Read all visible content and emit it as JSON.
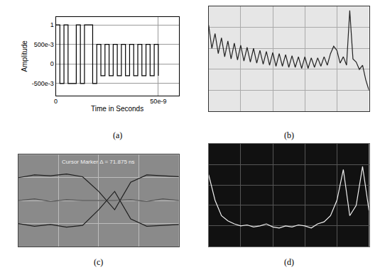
{
  "chart_data": [
    {
      "type": "line",
      "title": "(a)",
      "x_label": "Time in Seconds",
      "y_label": "Amplitude",
      "line_style": "step",
      "color": "#000000",
      "grid": true,
      "x": [
        0,
        2e-09,
        4e-09,
        6e-09,
        8e-09,
        1e-08,
        1.2e-08,
        1.4e-08,
        1.6e-08,
        1.8e-08,
        2e-08,
        2.2e-08,
        2.4e-08,
        2.6e-08,
        2.8e-08,
        3e-08,
        3.2e-08,
        3.4e-08,
        3.6e-08,
        3.8e-08,
        4e-08,
        4.2e-08,
        4.4e-08,
        4.6e-08,
        4.8e-08,
        5e-08
      ],
      "values": [
        1,
        -0.5,
        1,
        -0.5,
        -0.5,
        1,
        -0.5,
        1,
        1,
        -0.5,
        0.5,
        -0.3,
        0.5,
        -0.3,
        0.5,
        -0.3,
        0.5,
        -0.3,
        0.5,
        -0.3,
        0.5,
        -0.3,
        0.5,
        -0.3,
        0.5,
        -0.3
      ],
      "xlim": [
        0,
        6e-08
      ],
      "xticks": [
        0,
        {
          "value": 5e-08,
          "label": "50e-9"
        }
      ],
      "ylim": [
        -0.8,
        1.2
      ],
      "yticks": [
        {
          "value": -0.5,
          "label": "-500e-3"
        },
        0,
        {
          "value": 0.5,
          "label": "500e-3"
        },
        1
      ]
    },
    {
      "type": "line",
      "title": "(b)",
      "line_style": "solid",
      "color": "#222222",
      "grid": true,
      "tick_labels": false,
      "x": [
        0,
        2,
        4,
        6,
        8,
        10,
        12,
        14,
        16,
        18,
        20,
        22,
        24,
        26,
        28,
        30,
        32,
        34,
        36,
        38,
        40,
        42,
        44,
        46,
        48,
        50,
        52,
        54,
        56,
        58,
        60,
        62,
        64,
        66,
        68,
        70,
        72,
        74,
        76,
        78,
        80,
        82,
        84,
        86,
        88,
        90,
        92,
        94,
        96,
        98,
        100
      ],
      "values": [
        82,
        60,
        74,
        55,
        70,
        52,
        67,
        50,
        65,
        49,
        63,
        48,
        61,
        47,
        60,
        46,
        58,
        45,
        57,
        44,
        56,
        43,
        55,
        43,
        54,
        42,
        53,
        42,
        52,
        41,
        52,
        41,
        51,
        42,
        51,
        43,
        52,
        44,
        55,
        62,
        58,
        46,
        52,
        44,
        96,
        50,
        47,
        40,
        44,
        30,
        20
      ],
      "xlim": [
        0,
        100
      ],
      "xticks": [
        0,
        20,
        40,
        60,
        80,
        100
      ],
      "ylim": [
        0,
        100
      ],
      "yticks": [
        0,
        20,
        40,
        60,
        80,
        100
      ]
    },
    {
      "type": "line",
      "title": "(c)",
      "line_style": "solid",
      "grid": true,
      "tick_labels": false,
      "annotations": [
        "Cursor Marker Δ = 71.875 ns"
      ],
      "x": [
        0,
        10,
        20,
        30,
        40,
        50,
        60,
        70,
        80,
        90,
        100
      ],
      "series": [
        {
          "color": "#1e1e1e",
          "values": [
            75,
            78,
            77,
            79,
            76,
            60,
            40,
            70,
            78,
            77,
            76
          ]
        },
        {
          "color": "#555555",
          "values": [
            50,
            52,
            49,
            51,
            50,
            50,
            50,
            51,
            49,
            52,
            50
          ]
        },
        {
          "color": "#1e1e1e",
          "values": [
            25,
            22,
            24,
            21,
            23,
            40,
            60,
            30,
            22,
            23,
            24
          ]
        }
      ],
      "xlim": [
        0,
        100
      ],
      "xticks": [
        0,
        25,
        50,
        75,
        100
      ],
      "ylim": [
        0,
        100
      ],
      "yticks": [
        0,
        25,
        50,
        75,
        100
      ]
    },
    {
      "type": "line",
      "title": "(d)",
      "line_style": "solid",
      "color": "#f0f0f0",
      "grid": true,
      "tick_labels": false,
      "x": [
        0,
        4,
        8,
        12,
        16,
        20,
        24,
        28,
        32,
        36,
        40,
        44,
        48,
        52,
        56,
        60,
        64,
        68,
        72,
        76,
        80,
        84,
        88,
        92,
        96,
        100
      ],
      "values": [
        70,
        45,
        30,
        25,
        22,
        20,
        21,
        19,
        20,
        22,
        19,
        18,
        20,
        19,
        21,
        20,
        18,
        22,
        24,
        30,
        45,
        75,
        30,
        40,
        78,
        35
      ],
      "xlim": [
        0,
        100
      ],
      "xticks": [
        0,
        20,
        40,
        60,
        80,
        100
      ],
      "ylim": [
        0,
        100
      ],
      "yticks": [
        0,
        20,
        40,
        60,
        80,
        100
      ]
    }
  ]
}
